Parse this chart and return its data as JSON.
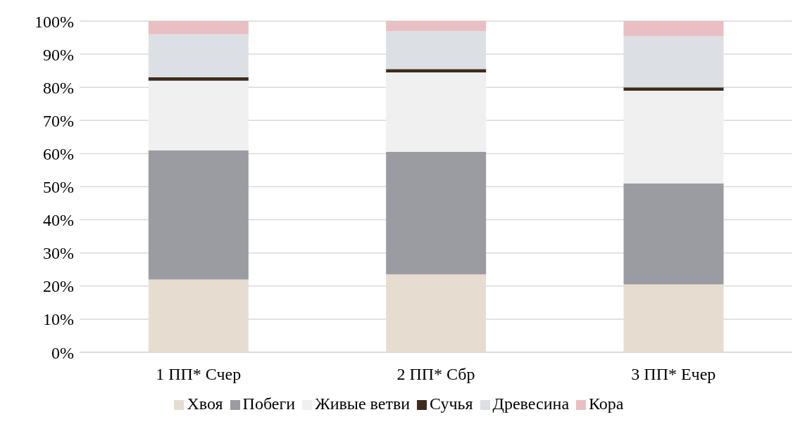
{
  "chart_data": {
    "type": "bar",
    "stacked": true,
    "categories": [
      "1 ПП* Счер",
      "2 ПП* Сбр",
      "3 ПП* Ечер"
    ],
    "series": [
      {
        "name": "Хвоя",
        "color": "#e6ddd0",
        "values": [
          22,
          23.5,
          20.5
        ]
      },
      {
        "name": "Побеги",
        "color": "#9a9ca2",
        "values": [
          39,
          37,
          30.5
        ]
      },
      {
        "name": "Живые ветви",
        "color": "#f0f0f0",
        "values": [
          21,
          24,
          28
        ]
      },
      {
        "name": "Сучья",
        "color": "#3d2b1f",
        "values": [
          1,
          1,
          1
        ]
      },
      {
        "name": "Древесина",
        "color": "#dcdfe3",
        "values": [
          13,
          11.5,
          15.5
        ]
      },
      {
        "name": "Кора",
        "color": "#e8bfc2",
        "values": [
          4,
          3,
          4.5
        ]
      }
    ],
    "ylim": [
      0,
      100
    ],
    "yticks": [
      {
        "value": 0,
        "label": "0%"
      },
      {
        "value": 10,
        "label": "10%"
      },
      {
        "value": 20,
        "label": "20%"
      },
      {
        "value": 30,
        "label": "30%"
      },
      {
        "value": 40,
        "label": "40%"
      },
      {
        "value": 50,
        "label": "50%"
      },
      {
        "value": 60,
        "label": "60%"
      },
      {
        "value": 70,
        "label": "70%"
      },
      {
        "value": 80,
        "label": "80%"
      },
      {
        "value": 90,
        "label": "90%"
      },
      {
        "value": 100,
        "label": "100%"
      }
    ],
    "grid": "y",
    "legend": "bottom"
  }
}
